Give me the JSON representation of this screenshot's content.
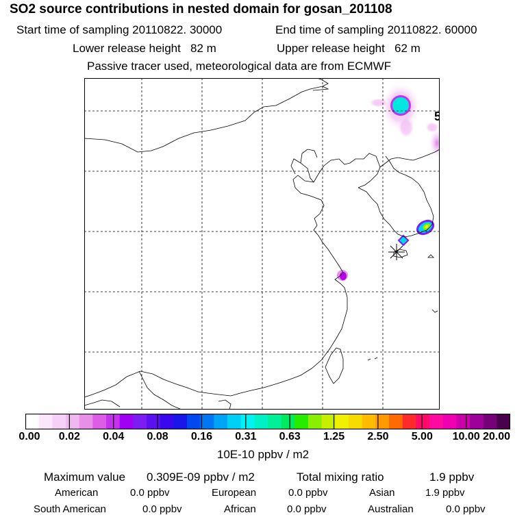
{
  "header": {
    "title": "SO2 source contributions in nested domain for gosan_201108",
    "start_time": "Start time of sampling 20110822. 30000",
    "end_time": "End time of sampling 20110822. 60000",
    "lower_height": "Lower release height   82 m",
    "upper_height": "Upper release height   62 m",
    "tracer_note": "Passive tracer used, meteorological data are from ECMWF"
  },
  "map": {
    "edge_label": "5",
    "grid_style": "dashed",
    "receptor_marker": "asterisk",
    "plumes": [
      {
        "name": "northeast-plume",
        "peak_color": "#00e8e0"
      },
      {
        "name": "korea-plume",
        "peak_color": "#e8e800"
      },
      {
        "name": "jeju-plume",
        "peak_color": "#00d8e8"
      },
      {
        "name": "shanghai-plume",
        "peak_color": "#b800e8"
      }
    ]
  },
  "colorbar": {
    "colors": [
      "#ffffff",
      "#fbe6fb",
      "#f6d0f6",
      "#f0b8f0",
      "#e890e8",
      "#dc5ee6",
      "#c432ee",
      "#a000f4",
      "#7e1cf4",
      "#5a10f0",
      "#3a08ee",
      "#1a16ea",
      "#0048f0",
      "#0078f4",
      "#00a4f6",
      "#00d0f8",
      "#00f2f4",
      "#00f0c8",
      "#00f09a",
      "#00ea60",
      "#28ec00",
      "#8aee00",
      "#c6f000",
      "#f0f000",
      "#f6dc00",
      "#ffbc00",
      "#ff9a00",
      "#ff6a00",
      "#ff2a2a",
      "#ff0a6a",
      "#ff0aa0",
      "#f000b0",
      "#cc00a8",
      "#a0009a",
      "#760078",
      "#4a004c"
    ],
    "ticks": [
      "0.00",
      "0.02",
      "0.04",
      "0.08",
      "0.16",
      "0.31",
      "0.63",
      "1.25",
      "2.50",
      "5.00",
      "10.00",
      "20.00"
    ],
    "unit": "10E-10 ppbv / m2"
  },
  "stats": {
    "max_label": "Maximum value",
    "max_value": "0.309E-09 ppbv / m2",
    "total_label": "Total mixing ratio",
    "total_value": "1.9 ppbv",
    "regions": [
      {
        "name": "American",
        "value": "0.0 ppbv"
      },
      {
        "name": "European",
        "value": "0.0 ppbv"
      },
      {
        "name": "Asian",
        "value": "1.9 ppbv"
      },
      {
        "name": "South American",
        "value": "0.0 ppbv"
      },
      {
        "name": "African",
        "value": "0.0 ppbv"
      },
      {
        "name": "Australian",
        "value": "0.0 ppbv"
      }
    ]
  }
}
